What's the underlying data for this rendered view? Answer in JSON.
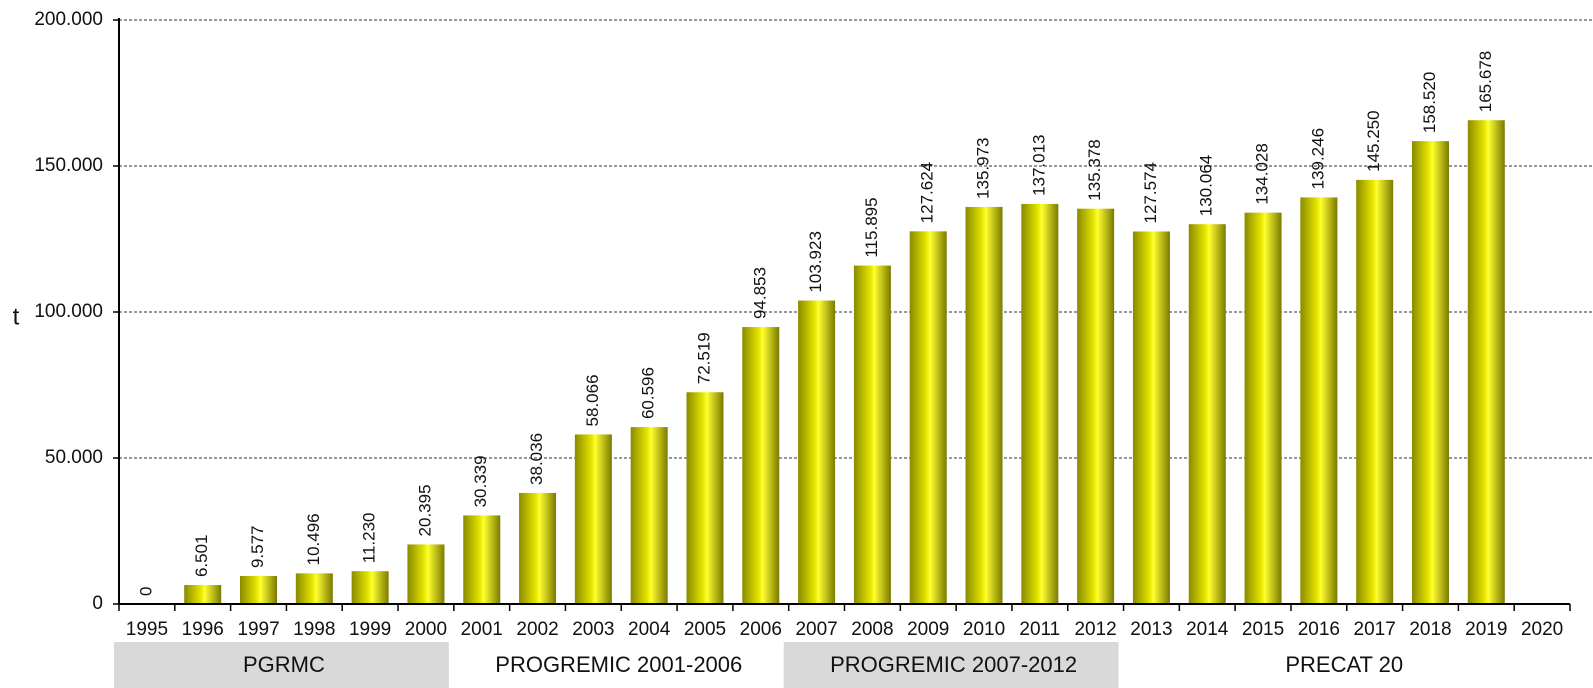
{
  "chart_data": {
    "type": "bar",
    "ylabel": "t",
    "ylim": [
      0,
      200000
    ],
    "yticks": [
      0,
      50000,
      100000,
      150000,
      200000
    ],
    "ytick_labels": [
      "0",
      "50.000",
      "100.000",
      "150.000",
      "200.000"
    ],
    "grid": true,
    "categories": [
      "1995",
      "1996",
      "1997",
      "1998",
      "1999",
      "2000",
      "2001",
      "2002",
      "2003",
      "2004",
      "2005",
      "2006",
      "2007",
      "2008",
      "2009",
      "2010",
      "2011",
      "2012",
      "2013",
      "2014",
      "2015",
      "2016",
      "2017",
      "2018",
      "2019",
      "2020"
    ],
    "values": [
      0,
      6501,
      9577,
      10496,
      11230,
      20395,
      30339,
      38036,
      58066,
      60596,
      72519,
      94853,
      103923,
      115895,
      127624,
      135973,
      137013,
      135378,
      127574,
      130064,
      134028,
      139246,
      145250,
      158520,
      165678,
      null
    ],
    "data_labels": [
      "0",
      "6.501",
      "9.577",
      "10.496",
      "11.230",
      "20.395",
      "30.339",
      "38.036",
      "58.066",
      "60.596",
      "72.519",
      "94.853",
      "103.923",
      "115.895",
      "127.624",
      "135.973",
      "137.013",
      "135.378",
      "127.574",
      "130.064",
      "134.028",
      "139.246",
      "145.250",
      "158.520",
      "165.678",
      ""
    ],
    "bar_color": "#e6e600",
    "periods": [
      {
        "label": "PGRMC",
        "from": "1995",
        "to": "2000",
        "color": "#d9d9d9"
      },
      {
        "label": "PROGREMIC 2001-2006",
        "from": "2001",
        "to": "2006",
        "color": "#ffffff"
      },
      {
        "label": "PROGREMIC 2007-2012",
        "from": "2007",
        "to": "2012",
        "color": "#d9d9d9"
      },
      {
        "label": "PRECAT 20",
        "from": "2013",
        "to": "2020",
        "color": "#ffffff"
      }
    ]
  }
}
